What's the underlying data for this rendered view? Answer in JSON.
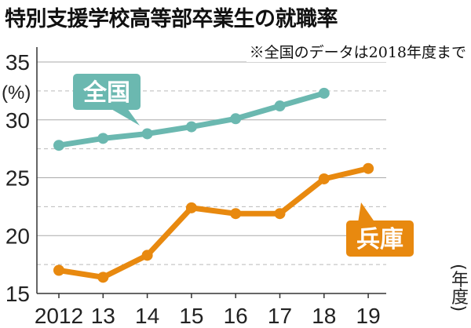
{
  "chart_data": {
    "type": "line",
    "title": "特別支援学校高等部卒業生の就職率",
    "note": "※全国のデータは2018年度まで",
    "ylabel": "(%)",
    "xlabel": "(年度)",
    "categories": [
      "2012",
      "13",
      "14",
      "15",
      "16",
      "17",
      "18",
      "19"
    ],
    "ylim": [
      15,
      35
    ],
    "yticks": [
      "15",
      "20",
      "25",
      "30",
      "35"
    ],
    "grid": true,
    "series": [
      {
        "name": "全国",
        "color": "#6bb8b0",
        "values": [
          27.8,
          28.4,
          28.8,
          29.4,
          30.1,
          31.2,
          32.3,
          null
        ]
      },
      {
        "name": "兵庫",
        "color": "#e8890f",
        "values": [
          17.0,
          16.4,
          18.3,
          22.4,
          21.9,
          21.9,
          24.9,
          25.8
        ]
      }
    ]
  }
}
